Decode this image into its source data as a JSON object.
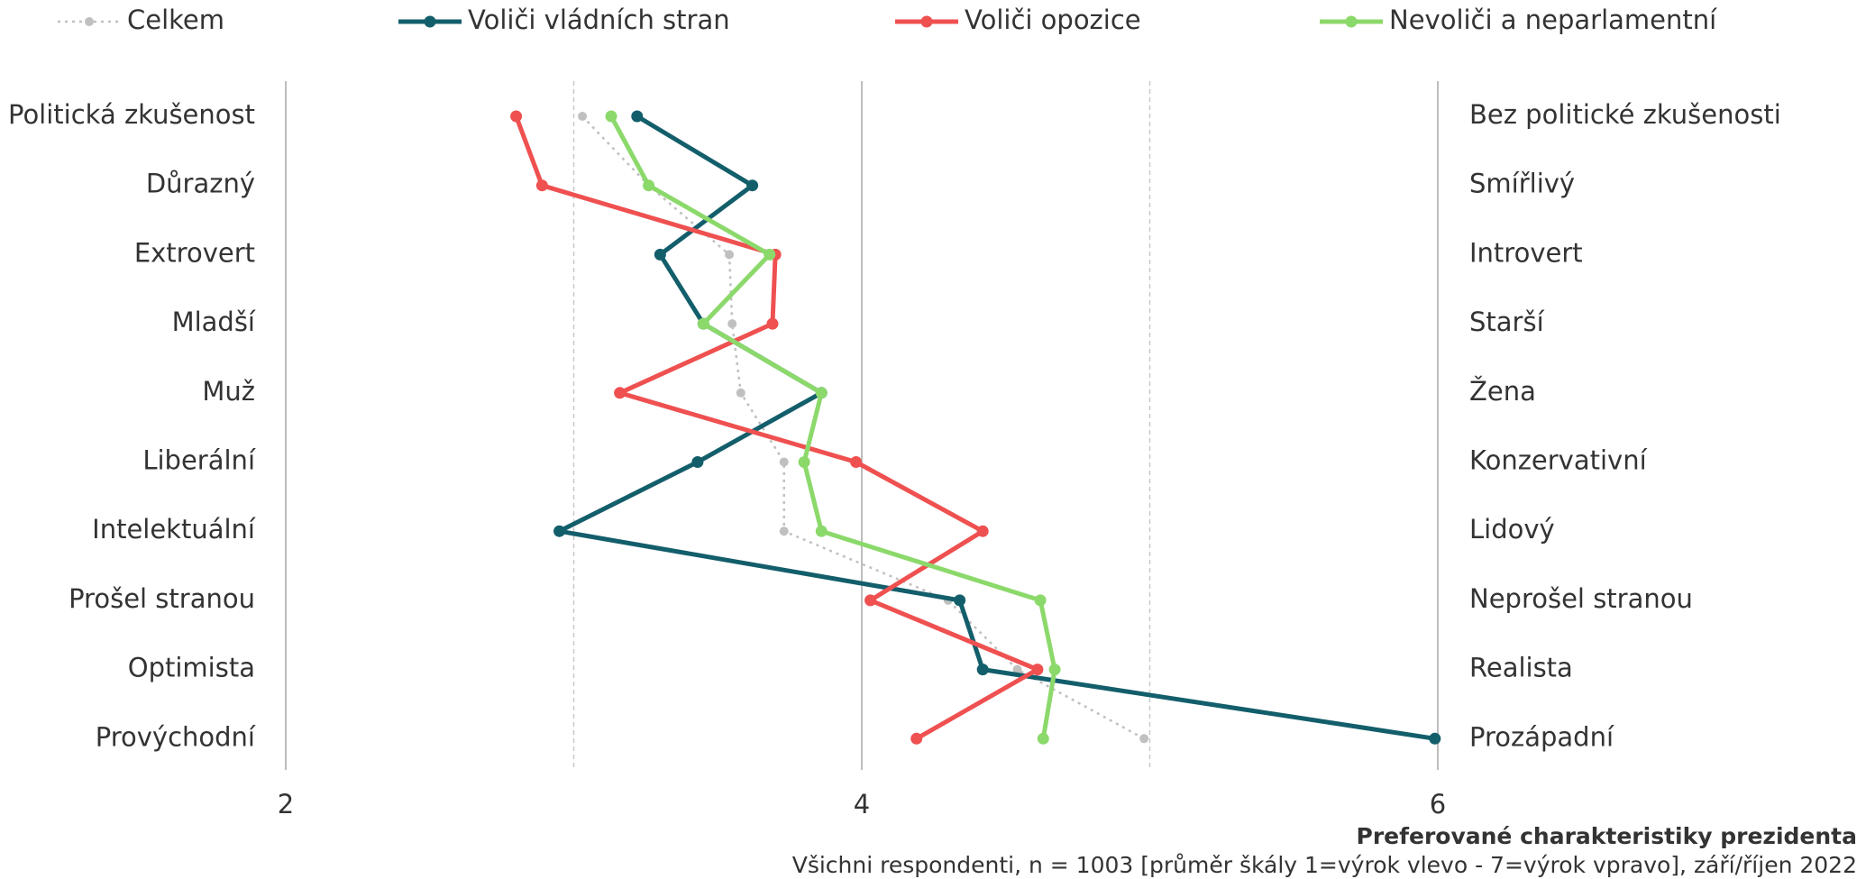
{
  "chart_data": {
    "type": "line",
    "title": "Preferované charakteristiky prezidenta",
    "subtitle": "Všichni respondenti, n = 1003 [průměr škály 1=výrok vlevo - 7=výrok vpravo], září/říjen 2022",
    "categories": [
      "Politická zkušenost",
      "Důrazný",
      "Extrovert",
      "Mladší",
      "Muž",
      "Liberální",
      "Intelektuální",
      "Prošel stranou",
      "Optimista",
      "Provýchodní"
    ],
    "right_categories": [
      "Bez politické zkušenosti",
      "Smířlivý",
      "Introvert",
      "Starší",
      "Žena",
      "Konzervativní",
      "Lidový",
      "Neprošel stranou",
      "Realista",
      "Prozápadní"
    ],
    "xlim": [
      2,
      6
    ],
    "xticks": [
      2,
      4,
      6
    ],
    "minor_xticks": [
      3,
      5
    ],
    "series": [
      {
        "name": "Celkem",
        "color": "#c0c0c0",
        "dash": true,
        "values": [
          3.03,
          3.26,
          3.54,
          3.55,
          3.58,
          3.73,
          3.73,
          4.3,
          4.54,
          4.98
        ]
      },
      {
        "name": "Voliči vládních stran",
        "color": "#135e6b",
        "values": [
          3.22,
          3.62,
          3.3,
          3.45,
          3.86,
          3.43,
          2.95,
          4.34,
          4.42,
          5.99
        ]
      },
      {
        "name": "Voliči opozice",
        "color": "#ef5050",
        "values": [
          2.8,
          2.89,
          3.7,
          3.69,
          3.16,
          3.98,
          4.42,
          4.03,
          4.61,
          4.19
        ]
      },
      {
        "name": "Nevoliči a neparlamentní",
        "color": "#8cd96b",
        "values": [
          3.13,
          3.26,
          3.68,
          3.45,
          3.86,
          3.8,
          3.86,
          4.62,
          4.67,
          4.63
        ]
      }
    ]
  }
}
